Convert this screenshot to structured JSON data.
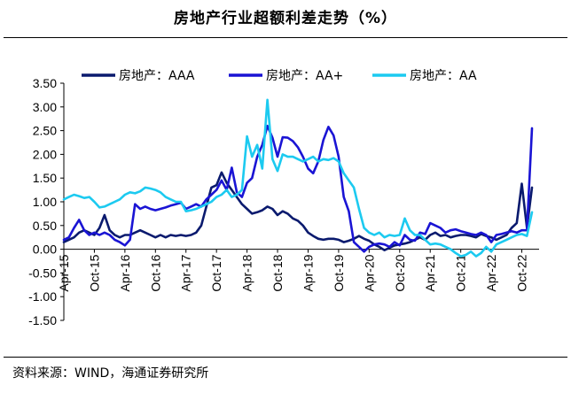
{
  "header": {
    "title": "房地产行业超额利差走势（%）"
  },
  "footer": {
    "source": "资料来源：WIND，海通证券研究所"
  },
  "chart_data": {
    "type": "line",
    "title": "房地产行业超额利差走势（%）",
    "xlabel": "",
    "ylabel": "",
    "ylim": [
      -1.5,
      3.5
    ],
    "yticks": [
      "3.50",
      "3.00",
      "2.50",
      "2.00",
      "1.50",
      "1.00",
      "0.50",
      "0.00",
      "-0.50",
      "-1.00",
      "-1.50"
    ],
    "xticks": [
      "Apr-15",
      "Oct-15",
      "Apr-16",
      "Oct-16",
      "Apr-17",
      "Oct-17",
      "Apr-18",
      "Oct-18",
      "Apr-19",
      "Oct-19",
      "Apr-20",
      "Oct-20",
      "Apr-21",
      "Oct-21",
      "Apr-22",
      "Oct-22"
    ],
    "x_range": [
      "2015-04",
      "2022-12"
    ],
    "grid": false,
    "legend": "top",
    "series": [
      {
        "name": "房地产：AAA",
        "color": "#0a1a6e",
        "points": [
          [
            "2015-04",
            0.15
          ],
          [
            "2015-05",
            0.2
          ],
          [
            "2015-06",
            0.25
          ],
          [
            "2015-07",
            0.35
          ],
          [
            "2015-08",
            0.4
          ],
          [
            "2015-09",
            0.35
          ],
          [
            "2015-10",
            0.3
          ],
          [
            "2015-11",
            0.45
          ],
          [
            "2015-12",
            0.72
          ],
          [
            "2016-01",
            0.4
          ],
          [
            "2016-02",
            0.3
          ],
          [
            "2016-03",
            0.25
          ],
          [
            "2016-04",
            0.3
          ],
          [
            "2016-05",
            0.3
          ],
          [
            "2016-06",
            0.35
          ],
          [
            "2016-07",
            0.4
          ],
          [
            "2016-08",
            0.35
          ],
          [
            "2016-09",
            0.3
          ],
          [
            "2016-10",
            0.25
          ],
          [
            "2016-11",
            0.3
          ],
          [
            "2016-12",
            0.25
          ],
          [
            "2017-01",
            0.3
          ],
          [
            "2017-02",
            0.28
          ],
          [
            "2017-03",
            0.3
          ],
          [
            "2017-04",
            0.28
          ],
          [
            "2017-05",
            0.3
          ],
          [
            "2017-06",
            0.35
          ],
          [
            "2017-07",
            0.5
          ],
          [
            "2017-08",
            0.9
          ],
          [
            "2017-09",
            1.3
          ],
          [
            "2017-10",
            1.35
          ],
          [
            "2017-11",
            1.62
          ],
          [
            "2017-12",
            1.4
          ],
          [
            "2018-01",
            1.25
          ],
          [
            "2018-02",
            1.1
          ],
          [
            "2018-03",
            0.95
          ],
          [
            "2018-04",
            0.85
          ],
          [
            "2018-05",
            0.75
          ],
          [
            "2018-06",
            0.78
          ],
          [
            "2018-07",
            0.82
          ],
          [
            "2018-08",
            0.9
          ],
          [
            "2018-09",
            0.85
          ],
          [
            "2018-10",
            0.72
          ],
          [
            "2018-11",
            0.8
          ],
          [
            "2018-12",
            0.75
          ],
          [
            "2019-01",
            0.65
          ],
          [
            "2019-02",
            0.6
          ],
          [
            "2019-03",
            0.5
          ],
          [
            "2019-04",
            0.35
          ],
          [
            "2019-05",
            0.28
          ],
          [
            "2019-06",
            0.22
          ],
          [
            "2019-07",
            0.2
          ],
          [
            "2019-08",
            0.22
          ],
          [
            "2019-09",
            0.22
          ],
          [
            "2019-10",
            0.2
          ],
          [
            "2019-11",
            0.15
          ],
          [
            "2019-12",
            0.18
          ],
          [
            "2020-01",
            0.22
          ],
          [
            "2020-02",
            0.28
          ],
          [
            "2020-03",
            0.22
          ],
          [
            "2020-04",
            0.18
          ],
          [
            "2020-05",
            0.1
          ],
          [
            "2020-06",
            0.05
          ],
          [
            "2020-07",
            -0.02
          ],
          [
            "2020-08",
            0.03
          ],
          [
            "2020-09",
            0.08
          ],
          [
            "2020-10",
            0.1
          ],
          [
            "2020-11",
            0.12
          ],
          [
            "2020-12",
            0.15
          ],
          [
            "2021-01",
            0.2
          ],
          [
            "2021-02",
            0.25
          ],
          [
            "2021-03",
            0.2
          ],
          [
            "2021-04",
            0.3
          ],
          [
            "2021-05",
            0.35
          ],
          [
            "2021-06",
            0.28
          ],
          [
            "2021-07",
            0.3
          ],
          [
            "2021-08",
            0.25
          ],
          [
            "2021-09",
            0.28
          ],
          [
            "2021-10",
            0.3
          ],
          [
            "2021-11",
            0.3
          ],
          [
            "2021-12",
            0.28
          ],
          [
            "2022-01",
            0.25
          ],
          [
            "2022-02",
            0.32
          ],
          [
            "2022-03",
            0.28
          ],
          [
            "2022-04",
            0.25
          ],
          [
            "2022-05",
            0.2
          ],
          [
            "2022-06",
            0.25
          ],
          [
            "2022-07",
            0.3
          ],
          [
            "2022-08",
            0.45
          ],
          [
            "2022-09",
            0.55
          ],
          [
            "2022-10",
            1.38
          ],
          [
            "2022-11",
            0.45
          ],
          [
            "2022-12",
            1.3
          ]
        ]
      },
      {
        "name": "房地产：AA+",
        "color": "#1a14d4",
        "points": [
          [
            "2015-04",
            0.2
          ],
          [
            "2015-05",
            0.25
          ],
          [
            "2015-06",
            0.45
          ],
          [
            "2015-07",
            0.62
          ],
          [
            "2015-08",
            0.4
          ],
          [
            "2015-09",
            0.3
          ],
          [
            "2015-10",
            0.35
          ],
          [
            "2015-11",
            0.3
          ],
          [
            "2015-12",
            0.35
          ],
          [
            "2016-01",
            0.3
          ],
          [
            "2016-02",
            0.2
          ],
          [
            "2016-03",
            0.15
          ],
          [
            "2016-04",
            0.08
          ],
          [
            "2016-05",
            0.2
          ],
          [
            "2016-06",
            0.95
          ],
          [
            "2016-07",
            0.85
          ],
          [
            "2016-08",
            0.9
          ],
          [
            "2016-09",
            0.85
          ],
          [
            "2016-10",
            0.82
          ],
          [
            "2016-11",
            0.85
          ],
          [
            "2016-12",
            0.88
          ],
          [
            "2017-01",
            0.92
          ],
          [
            "2017-02",
            0.95
          ],
          [
            "2017-03",
            0.98
          ],
          [
            "2017-04",
            0.85
          ],
          [
            "2017-05",
            0.9
          ],
          [
            "2017-06",
            0.95
          ],
          [
            "2017-07",
            0.9
          ],
          [
            "2017-08",
            1.05
          ],
          [
            "2017-09",
            1.15
          ],
          [
            "2017-10",
            1.25
          ],
          [
            "2017-11",
            1.45
          ],
          [
            "2017-12",
            1.25
          ],
          [
            "2018-01",
            1.72
          ],
          [
            "2018-02",
            1.2
          ],
          [
            "2018-03",
            1.1
          ],
          [
            "2018-04",
            1.4
          ],
          [
            "2018-05",
            1.5
          ],
          [
            "2018-06",
            1.95
          ],
          [
            "2018-07",
            2.2
          ],
          [
            "2018-08",
            2.6
          ],
          [
            "2018-09",
            2.35
          ],
          [
            "2018-10",
            1.95
          ],
          [
            "2018-11",
            2.36
          ],
          [
            "2018-12",
            2.35
          ],
          [
            "2019-01",
            2.28
          ],
          [
            "2019-02",
            2.15
          ],
          [
            "2019-03",
            1.95
          ],
          [
            "2019-04",
            1.7
          ],
          [
            "2019-05",
            1.6
          ],
          [
            "2019-06",
            1.85
          ],
          [
            "2019-07",
            2.3
          ],
          [
            "2019-08",
            2.58
          ],
          [
            "2019-09",
            2.4
          ],
          [
            "2019-10",
            1.95
          ],
          [
            "2019-11",
            1.1
          ],
          [
            "2019-12",
            0.8
          ],
          [
            "2020-01",
            0.15
          ],
          [
            "2020-02",
            0.05
          ],
          [
            "2020-03",
            -0.05
          ],
          [
            "2020-04",
            0.05
          ],
          [
            "2020-05",
            0.1
          ],
          [
            "2020-06",
            0.12
          ],
          [
            "2020-07",
            0.1
          ],
          [
            "2020-08",
            0.05
          ],
          [
            "2020-09",
            0.15
          ],
          [
            "2020-10",
            0.08
          ],
          [
            "2020-11",
            0.3
          ],
          [
            "2020-12",
            0.2
          ],
          [
            "2021-01",
            0.18
          ],
          [
            "2021-02",
            0.35
          ],
          [
            "2021-03",
            0.32
          ],
          [
            "2021-04",
            0.55
          ],
          [
            "2021-05",
            0.5
          ],
          [
            "2021-06",
            0.45
          ],
          [
            "2021-07",
            0.35
          ],
          [
            "2021-08",
            0.4
          ],
          [
            "2021-09",
            0.42
          ],
          [
            "2021-10",
            0.38
          ],
          [
            "2021-11",
            0.35
          ],
          [
            "2021-12",
            0.32
          ],
          [
            "2022-01",
            0.3
          ],
          [
            "2022-02",
            0.35
          ],
          [
            "2022-03",
            0.3
          ],
          [
            "2022-04",
            0.15
          ],
          [
            "2022-05",
            0.3
          ],
          [
            "2022-06",
            0.32
          ],
          [
            "2022-07",
            0.35
          ],
          [
            "2022-08",
            0.38
          ],
          [
            "2022-09",
            0.35
          ],
          [
            "2022-10",
            0.4
          ],
          [
            "2022-11",
            0.4
          ],
          [
            "2022-12",
            2.55
          ]
        ]
      },
      {
        "name": "房地产：AA",
        "color": "#1ccaf0",
        "points": [
          [
            "2015-04",
            1.05
          ],
          [
            "2015-05",
            1.1
          ],
          [
            "2015-06",
            1.15
          ],
          [
            "2015-07",
            1.12
          ],
          [
            "2015-08",
            1.08
          ],
          [
            "2015-09",
            1.1
          ],
          [
            "2015-10",
            1.0
          ],
          [
            "2015-11",
            0.88
          ],
          [
            "2015-12",
            0.9
          ],
          [
            "2016-01",
            0.95
          ],
          [
            "2016-02",
            1.0
          ],
          [
            "2016-03",
            1.05
          ],
          [
            "2016-04",
            1.15
          ],
          [
            "2016-05",
            1.2
          ],
          [
            "2016-06",
            1.18
          ],
          [
            "2016-07",
            1.22
          ],
          [
            "2016-08",
            1.3
          ],
          [
            "2016-09",
            1.28
          ],
          [
            "2016-10",
            1.25
          ],
          [
            "2016-11",
            1.2
          ],
          [
            "2016-12",
            1.1
          ],
          [
            "2017-01",
            1.05
          ],
          [
            "2017-02",
            1.0
          ],
          [
            "2017-03",
            1.0
          ],
          [
            "2017-04",
            0.8
          ],
          [
            "2017-05",
            0.82
          ],
          [
            "2017-06",
            0.85
          ],
          [
            "2017-07",
            0.9
          ],
          [
            "2017-08",
            0.95
          ],
          [
            "2017-09",
            1.0
          ],
          [
            "2017-10",
            1.1
          ],
          [
            "2017-11",
            1.15
          ],
          [
            "2017-12",
            1.25
          ],
          [
            "2018-01",
            1.1
          ],
          [
            "2018-02",
            1.15
          ],
          [
            "2018-03",
            1.25
          ],
          [
            "2018-04",
            2.38
          ],
          [
            "2018-05",
            1.95
          ],
          [
            "2018-06",
            2.2
          ],
          [
            "2018-07",
            1.7
          ],
          [
            "2018-08",
            3.15
          ],
          [
            "2018-09",
            1.9
          ],
          [
            "2018-10",
            1.65
          ],
          [
            "2018-11",
            2.0
          ],
          [
            "2018-12",
            1.95
          ],
          [
            "2019-01",
            1.95
          ],
          [
            "2019-02",
            1.9
          ],
          [
            "2019-03",
            1.85
          ],
          [
            "2019-04",
            1.9
          ],
          [
            "2019-05",
            1.95
          ],
          [
            "2019-06",
            1.85
          ],
          [
            "2019-07",
            1.9
          ],
          [
            "2019-08",
            1.88
          ],
          [
            "2019-09",
            1.92
          ],
          [
            "2019-10",
            1.85
          ],
          [
            "2019-11",
            1.6
          ],
          [
            "2019-12",
            1.45
          ],
          [
            "2020-01",
            1.3
          ],
          [
            "2020-02",
            0.85
          ],
          [
            "2020-03",
            0.45
          ],
          [
            "2020-04",
            0.35
          ],
          [
            "2020-05",
            0.3
          ],
          [
            "2020-06",
            0.35
          ],
          [
            "2020-07",
            0.25
          ],
          [
            "2020-08",
            0.3
          ],
          [
            "2020-09",
            0.28
          ],
          [
            "2020-10",
            0.3
          ],
          [
            "2020-11",
            0.65
          ],
          [
            "2020-12",
            0.4
          ],
          [
            "2021-01",
            0.3
          ],
          [
            "2021-02",
            0.3
          ],
          [
            "2021-03",
            0.2
          ],
          [
            "2021-04",
            0.1
          ],
          [
            "2021-05",
            0.12
          ],
          [
            "2021-06",
            0.1
          ],
          [
            "2021-07",
            0.05
          ],
          [
            "2021-08",
            0.0
          ],
          [
            "2021-09",
            -0.08
          ],
          [
            "2021-10",
            -0.15
          ],
          [
            "2021-11",
            -0.12
          ],
          [
            "2021-12",
            -0.05
          ],
          [
            "2022-01",
            -0.15
          ],
          [
            "2022-02",
            -0.08
          ],
          [
            "2022-03",
            0.05
          ],
          [
            "2022-04",
            -0.05
          ],
          [
            "2022-05",
            0.1
          ],
          [
            "2022-06",
            0.15
          ],
          [
            "2022-07",
            0.2
          ],
          [
            "2022-08",
            0.25
          ],
          [
            "2022-09",
            0.3
          ],
          [
            "2022-10",
            0.32
          ],
          [
            "2022-11",
            0.28
          ],
          [
            "2022-12",
            0.78
          ]
        ]
      }
    ]
  }
}
